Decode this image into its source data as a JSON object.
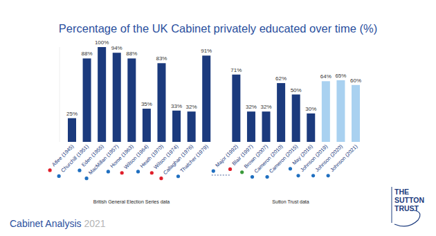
{
  "chart_data": {
    "type": "bar",
    "title": "Percentage of the UK Cabinet privately educated over time (%)",
    "categories": [
      "Atlee (1945)",
      "Churchill (1951)",
      "Eden (1955)",
      "MacMillan (1957)",
      "Home (1963)",
      "Wilson (1964)",
      "Heath (1970)",
      "Wilson (1974)",
      "Callaghan (1976)",
      "Thatcher (1979)",
      null,
      "Major (1992)",
      "Blair (1997)",
      "Brown (2007)",
      "Cameron (2010)",
      "Cameron (2015)",
      "May (2016)",
      "Johnson (2019)",
      "Johnson (2020)",
      "Johnson (2021)"
    ],
    "values": [
      25,
      88,
      100,
      94,
      88,
      35,
      83,
      33,
      32,
      91,
      null,
      71,
      32,
      32,
      62,
      50,
      30,
      64,
      65,
      60
    ],
    "value_labels": [
      "25%",
      "88%",
      "100%",
      "94%",
      "88%",
      "35%",
      "83%",
      "33%",
      "32%",
      "91%",
      null,
      "71%",
      "32%",
      "32%",
      "62%",
      "50%",
      "30%",
      "64%",
      "65%",
      "60%"
    ],
    "colors": [
      "#1b3a7d",
      "#1b3a7d",
      "#1b3a7d",
      "#1b3a7d",
      "#1b3a7d",
      "#1b3a7d",
      "#1b3a7d",
      "#1b3a7d",
      "#1b3a7d",
      "#1b3a7d",
      "#1b3a7d",
      "#1b3a7d",
      "#1b3a7d",
      "#1b3a7d",
      "#1b3a7d",
      "#1b3a7d",
      "#1b3a7d",
      "#a9d1f0",
      "#a9d1f0",
      "#a9d1f0"
    ],
    "ylim": [
      0,
      100
    ],
    "tick_labels": "x",
    "grid": false,
    "data_labels": true,
    "annotations": [
      "British General Election Series data",
      "Sutton Trust data"
    ]
  },
  "footer": {
    "title": "Cabinet Analysis",
    "year": "2021"
  },
  "logo": [
    "THE",
    "SUTTON",
    "TRUST"
  ]
}
